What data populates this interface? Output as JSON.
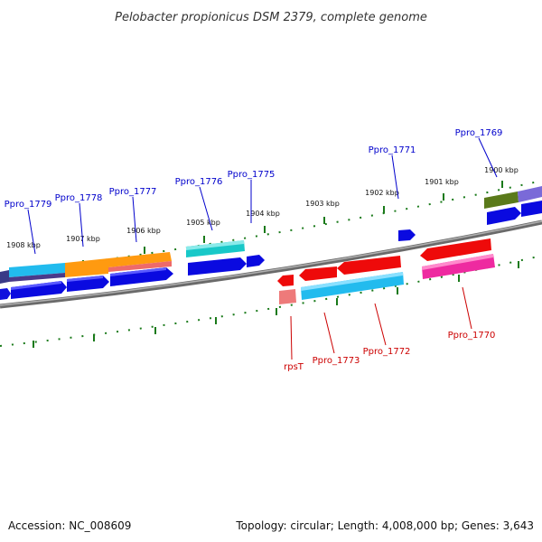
{
  "title": "Pelobacter propionicus DSM 2379, complete genome",
  "footer": {
    "accession": "Accession: NC_008609",
    "topology": "Topology: circular; Length: 4,008,000 bp; Genes: 3,643"
  },
  "kbp_labels": [
    "1908 kbp",
    "1907 kbp",
    "1906 kbp",
    "1905 kbp",
    "1904 kbp",
    "1903 kbp",
    "1902 kbp",
    "1901 kbp",
    "1900 kbp"
  ],
  "genes_top": [
    "Ppro_1779",
    "Ppro_1778",
    "Ppro_1777",
    "Ppro_1776",
    "Ppro_1775",
    "Ppro_1771",
    "Ppro_1769"
  ],
  "genes_bottom": [
    "rpsT",
    "Ppro_1773",
    "Ppro_1772",
    "Ppro_1770"
  ],
  "colors": {
    "blue": "#0a0ae0",
    "red": "#ee0a0a",
    "cyan_light": "#22bbee",
    "orange": "#ff9a10",
    "teal": "#18c8c8",
    "pink": "#ee2aa0",
    "olive": "#5a7a1a",
    "lavender": "#7a6ad8",
    "tick": "#1a7a1a",
    "backbone": "#8a8a8a"
  }
}
